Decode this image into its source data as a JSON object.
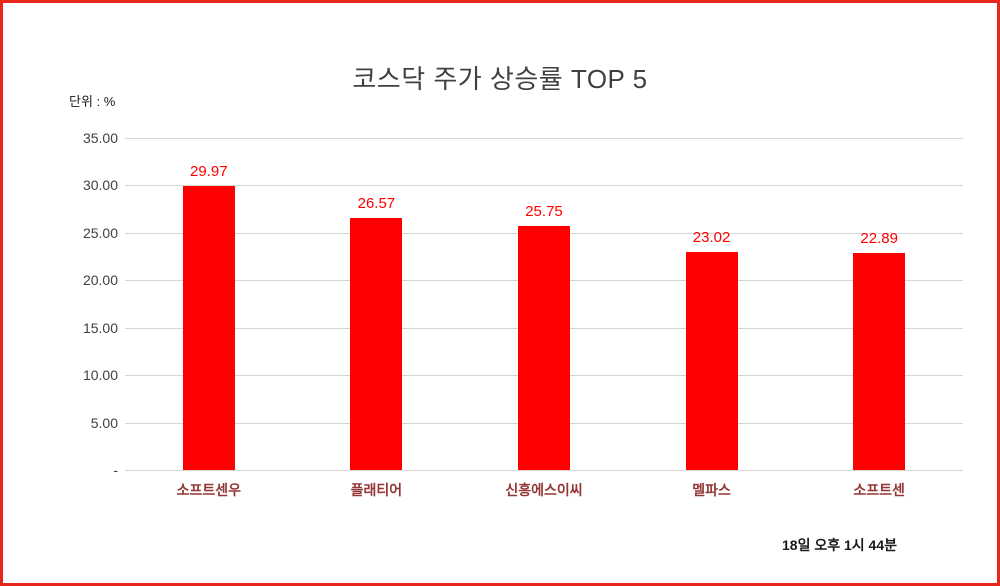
{
  "title": "코스닥 주가 상승률 TOP 5",
  "unit_label": "단위 : %",
  "timestamp": "18일 오후 1시 44분",
  "colors": {
    "bar": "#ff0000",
    "value_label": "#ff0000",
    "category_label": "#943634",
    "frame_border": "#e8261c",
    "gridline": "#d6d6d6",
    "title_text": "#404040"
  },
  "chart_data": {
    "type": "bar",
    "title": "코스닥 주가 상승률 TOP 5",
    "categories": [
      "소프트센우",
      "플래티어",
      "신흥에스이씨",
      "멜파스",
      "소프트센"
    ],
    "values": [
      29.97,
      26.57,
      25.75,
      23.02,
      22.89
    ],
    "value_labels": [
      "29.97",
      "26.57",
      "25.75",
      "23.02",
      "22.89"
    ],
    "xlabel": "",
    "ylabel": "단위 : %",
    "ylim": [
      0,
      35
    ],
    "yticks": [
      {
        "value": 35,
        "label": "35.00"
      },
      {
        "value": 30,
        "label": "30.00"
      },
      {
        "value": 25,
        "label": "25.00"
      },
      {
        "value": 20,
        "label": "20.00"
      },
      {
        "value": 15,
        "label": "15.00"
      },
      {
        "value": 10,
        "label": "10.00"
      },
      {
        "value": 5,
        "label": "5.00"
      },
      {
        "value": 0,
        "label": "-"
      }
    ],
    "grid": true,
    "legend_position": "none",
    "annotations": [
      "18일 오후 1시 44분"
    ]
  }
}
